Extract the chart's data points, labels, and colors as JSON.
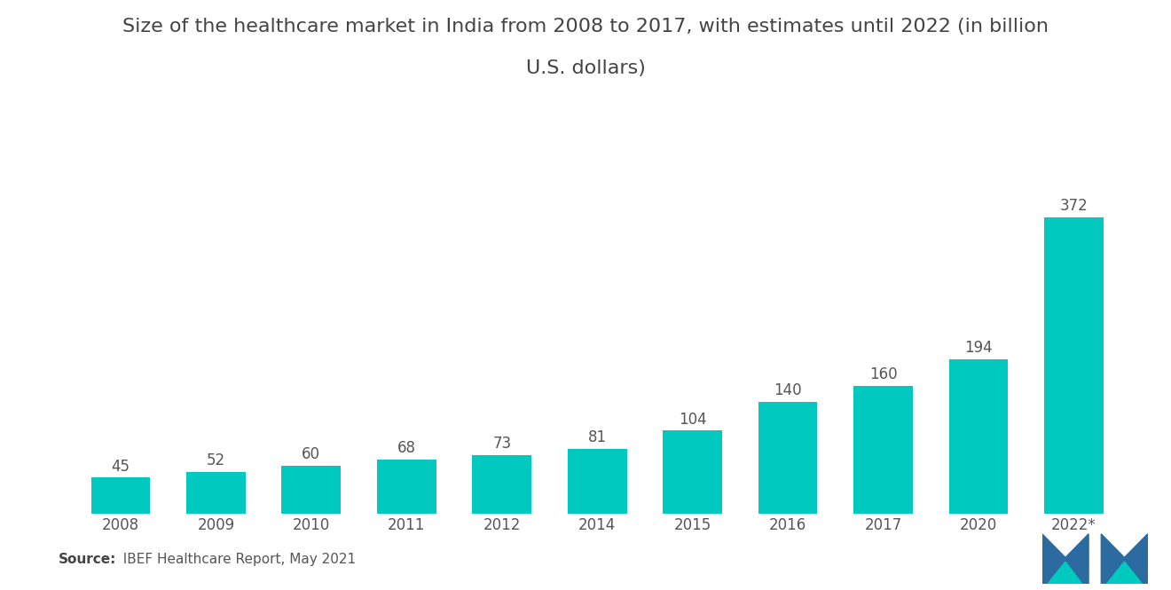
{
  "title_line1": "Size of the healthcare market in India from 2008 to 2017, with estimates until 2022 (in billion",
  "title_line2": "U.S. dollars)",
  "categories": [
    "2008",
    "2009",
    "2010",
    "2011",
    "2012",
    "2014",
    "2015",
    "2016",
    "2017",
    "2020",
    "2022*"
  ],
  "values": [
    45,
    52,
    60,
    68,
    73,
    81,
    104,
    140,
    160,
    194,
    372
  ],
  "bar_color": "#00C9C0",
  "background_color": "#ffffff",
  "title_fontsize": 16,
  "label_fontsize": 12,
  "tick_fontsize": 12,
  "source_bold": "Source:",
  "source_normal": "  IBEF Healthcare Report, May 2021",
  "ylim": [
    0,
    430
  ],
  "logo_left_color1": "#2d6b9e",
  "logo_left_color2": "#00C9C0",
  "logo_right_color1": "#2d6b9e",
  "logo_right_color2": "#00C9C0"
}
